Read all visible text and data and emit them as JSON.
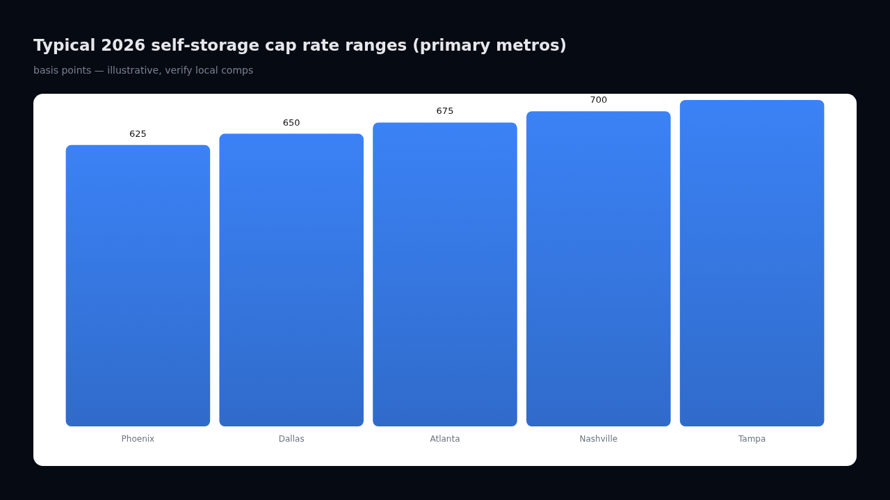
{
  "chart_data": {
    "type": "bar",
    "title": "Typical 2026 self-storage cap rate ranges (primary metros)",
    "subtitle": "basis points — illustrative, verify local comps",
    "categories": [
      "Phoenix",
      "Dallas",
      "Atlanta",
      "Nashville",
      "Tampa"
    ],
    "values": [
      625,
      650,
      675,
      700,
      725
    ],
    "value_labels": [
      "625",
      "650",
      "675",
      "700",
      null
    ],
    "color": "#3b82f6"
  }
}
